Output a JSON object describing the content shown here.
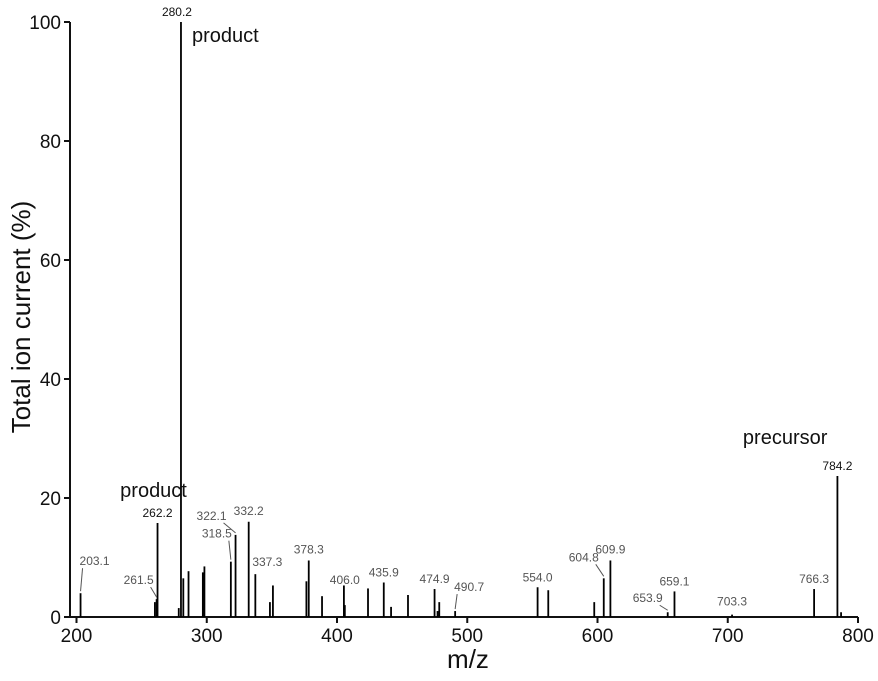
{
  "chart_data": {
    "type": "bar",
    "title": "",
    "xlabel": "m/z",
    "ylabel": "Total ion current (%)",
    "xlim": [
      195,
      800
    ],
    "ylim": [
      0,
      100
    ],
    "x_ticks": [
      "200",
      "300",
      "400",
      "500",
      "600",
      "700",
      "800"
    ],
    "y_ticks": [
      "0",
      "20",
      "40",
      "60",
      "80",
      "100"
    ],
    "grid": false,
    "legend": "none",
    "peaks": [
      {
        "mz": 203.1,
        "intensity": 4.0,
        "label": "203.1"
      },
      {
        "mz": 260.2,
        "intensity": 2.5
      },
      {
        "mz": 261.5,
        "intensity": 3.0,
        "label": "261.5"
      },
      {
        "mz": 262.2,
        "intensity": 15.8,
        "label": "262.2",
        "strong": true
      },
      {
        "mz": 278.5,
        "intensity": 1.5
      },
      {
        "mz": 280.2,
        "intensity": 100,
        "label": "280.2",
        "strong": true
      },
      {
        "mz": 282.0,
        "intensity": 6.5
      },
      {
        "mz": 286.0,
        "intensity": 7.7
      },
      {
        "mz": 297.0,
        "intensity": 7.5
      },
      {
        "mz": 298.2,
        "intensity": 8.5
      },
      {
        "mz": 318.5,
        "intensity": 9.3,
        "label": "318.5"
      },
      {
        "mz": 322.1,
        "intensity": 13.8,
        "label": "322.1"
      },
      {
        "mz": 332.2,
        "intensity": 16.0,
        "label": "332.2"
      },
      {
        "mz": 337.3,
        "intensity": 7.2,
        "label": "337.3"
      },
      {
        "mz": 348.5,
        "intensity": 2.5
      },
      {
        "mz": 350.8,
        "intensity": 5.3
      },
      {
        "mz": 376.5,
        "intensity": 6.0
      },
      {
        "mz": 378.3,
        "intensity": 9.5,
        "label": "378.3"
      },
      {
        "mz": 388.5,
        "intensity": 3.5
      },
      {
        "mz": 405.3,
        "intensity": 5.3
      },
      {
        "mz": 406.0,
        "intensity": 2.0,
        "label": "406.0"
      },
      {
        "mz": 423.8,
        "intensity": 4.8
      },
      {
        "mz": 435.9,
        "intensity": 5.8,
        "label": "435.9"
      },
      {
        "mz": 441.5,
        "intensity": 1.7
      },
      {
        "mz": 454.5,
        "intensity": 3.7
      },
      {
        "mz": 474.9,
        "intensity": 4.7,
        "label": "474.9"
      },
      {
        "mz": 477.2,
        "intensity": 1.0
      },
      {
        "mz": 478.5,
        "intensity": 2.5
      },
      {
        "mz": 490.7,
        "intensity": 1.0,
        "label": "490.7"
      },
      {
        "mz": 554.0,
        "intensity": 5.0,
        "label": "554.0"
      },
      {
        "mz": 562.2,
        "intensity": 4.5
      },
      {
        "mz": 597.5,
        "intensity": 2.5
      },
      {
        "mz": 604.8,
        "intensity": 6.5,
        "label": "604.8"
      },
      {
        "mz": 609.9,
        "intensity": 9.5,
        "label": "609.9"
      },
      {
        "mz": 653.9,
        "intensity": 0.8,
        "label": "653.9"
      },
      {
        "mz": 659.1,
        "intensity": 4.3,
        "label": "659.1"
      },
      {
        "mz": 703.3,
        "intensity": 0.4,
        "label": "703.3"
      },
      {
        "mz": 766.3,
        "intensity": 4.7,
        "label": "766.3"
      },
      {
        "mz": 784.2,
        "intensity": 23.7,
        "label": "784.2",
        "strong": true
      },
      {
        "mz": 787.0,
        "intensity": 0.8
      }
    ],
    "annotations": [
      {
        "text": "product",
        "mz": 280.2
      },
      {
        "text": "product",
        "mz": 262.2
      },
      {
        "text": "precursor",
        "mz": 784.2
      }
    ]
  }
}
